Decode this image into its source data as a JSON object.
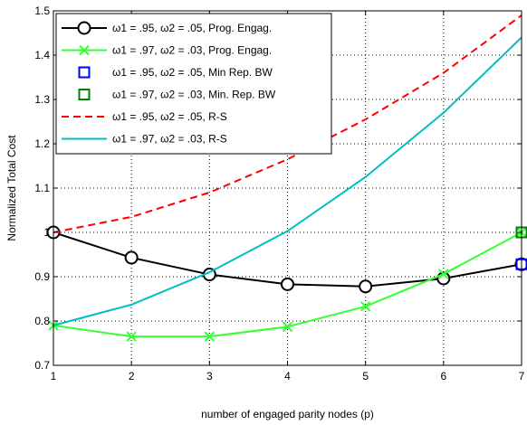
{
  "chart_data": {
    "type": "line",
    "title": "",
    "xlabel": "number of engaged parity nodes (p)",
    "ylabel": "Normalized Total Cost",
    "xlim": [
      1,
      7
    ],
    "ylim": [
      0.7,
      1.5
    ],
    "x_ticks": [
      "1",
      "2",
      "3",
      "4",
      "5",
      "6",
      "7"
    ],
    "y_ticks": [
      "0.7",
      "0.8",
      "0.9",
      "1",
      "1.1",
      "1.2",
      "1.3",
      "1.4",
      "1.5"
    ],
    "grid": true,
    "legend_position": "top-left",
    "series": [
      {
        "name": "ω1 = .95, ω2 = .05, Prog. Engag.",
        "color": "#000000",
        "style": "solid",
        "marker": "circle",
        "x": [
          1,
          2,
          3,
          4,
          5,
          6,
          7
        ],
        "y": [
          1.0,
          0.943,
          0.905,
          0.883,
          0.878,
          0.896,
          0.928
        ]
      },
      {
        "name": "ω1 = .97, ω2 = .03, Prog. Engag.",
        "color": "#33ff33",
        "style": "solid",
        "marker": "x",
        "x": [
          1,
          2,
          3,
          4,
          5,
          6,
          7
        ],
        "y": [
          0.79,
          0.765,
          0.765,
          0.787,
          0.833,
          0.906,
          1.0
        ]
      },
      {
        "name": "ω1 = .95, ω2 = .05, Min Rep. BW",
        "color": "#0000ff",
        "style": "none",
        "marker": "square",
        "x": [
          7
        ],
        "y": [
          0.928
        ]
      },
      {
        "name": "ω1 = .97, ω2 = .03, Min. Rep. BW",
        "color": "#008000",
        "style": "none",
        "marker": "square",
        "x": [
          7
        ],
        "y": [
          1.0
        ]
      },
      {
        "name": "ω1 = .95, ω2 = .05, R-S",
        "color": "#ff0000",
        "style": "dashed",
        "marker": "none",
        "x": [
          1,
          2,
          3,
          4,
          5,
          6,
          7
        ],
        "y": [
          1.0,
          1.035,
          1.09,
          1.165,
          1.255,
          1.36,
          1.49
        ]
      },
      {
        "name": "ω1 = .97, ω2 = .03, R-S",
        "color": "#00bfbf",
        "style": "solid",
        "marker": "none",
        "x": [
          1,
          2,
          3,
          4,
          5,
          6,
          7
        ],
        "y": [
          0.79,
          0.837,
          0.91,
          1.003,
          1.125,
          1.27,
          1.44
        ]
      }
    ]
  }
}
